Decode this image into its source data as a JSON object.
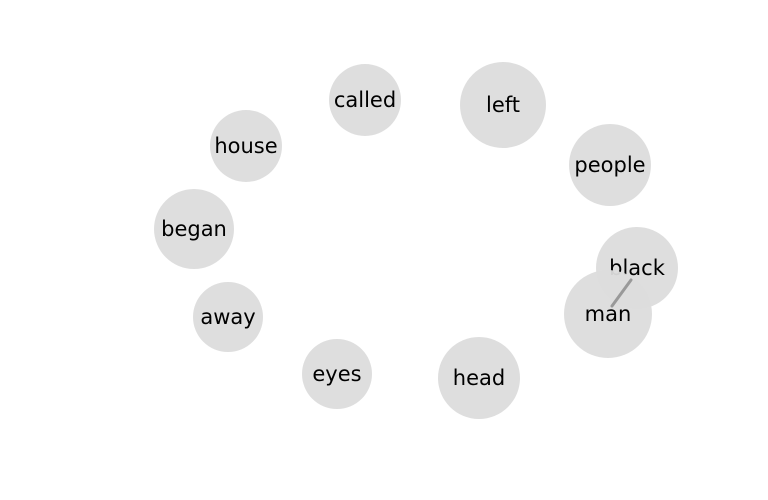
{
  "diagram": {
    "type": "word-network",
    "colors": {
      "node_fill": "#dcdcdc",
      "edge": "#999999",
      "label": "#000000",
      "background": "#ffffff"
    },
    "nodes": [
      {
        "id": "called",
        "label": "called"
      },
      {
        "id": "left",
        "label": "left"
      },
      {
        "id": "house",
        "label": "house"
      },
      {
        "id": "people",
        "label": "people"
      },
      {
        "id": "began",
        "label": "began"
      },
      {
        "id": "black",
        "label": "black"
      },
      {
        "id": "away",
        "label": "away"
      },
      {
        "id": "man",
        "label": "man"
      },
      {
        "id": "eyes",
        "label": "eyes"
      },
      {
        "id": "head",
        "label": "head"
      }
    ],
    "edges": [
      {
        "source": "black",
        "target": "man"
      }
    ]
  }
}
